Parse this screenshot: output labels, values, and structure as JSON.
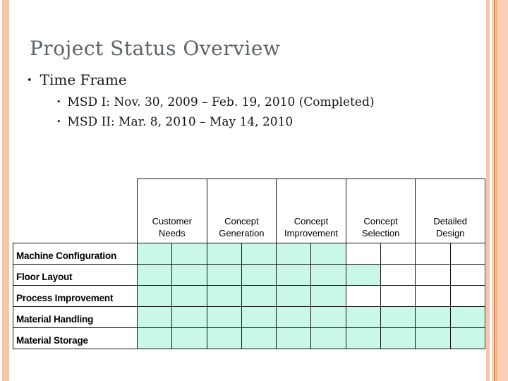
{
  "slide": {
    "title": "Project Status Overview",
    "bullets": {
      "level1": "Time Frame",
      "level1_marker": "•",
      "level2_marker": "•",
      "level2": [
        "MSD I: Nov. 30, 2009 – Feb. 19, 2010 (Completed)",
        "MSD II: Mar. 8, 2010 – May 14, 2010"
      ]
    }
  },
  "gantt": {
    "columns": [
      "Customer Needs",
      "Concept Generation",
      "Concept Improvement",
      "Concept Selection",
      "Detailed Design"
    ],
    "subcolumns_per_phase": 2,
    "rows": [
      {
        "label": "Machine Configuration",
        "filled_cells": 6,
        "total_cells": 10
      },
      {
        "label": "Floor Layout",
        "filled_cells": 7,
        "total_cells": 10
      },
      {
        "label": "Process Improvement",
        "filled_cells": 6,
        "total_cells": 10
      },
      {
        "label": "Material Handling",
        "filled_cells": 10,
        "total_cells": 10
      },
      {
        "label": "Material Storage",
        "filled_cells": 10,
        "total_cells": 10
      }
    ],
    "fill_color": "#c9f8e7"
  },
  "theme": {
    "accent_stripe": "#f7c5ac",
    "accent_band": "#fbceb5",
    "accent_line_dark": "#d0915f",
    "accent_line_mid": "#eab28a",
    "title_color": "#5d6266",
    "grid_line_color": "#151515"
  }
}
